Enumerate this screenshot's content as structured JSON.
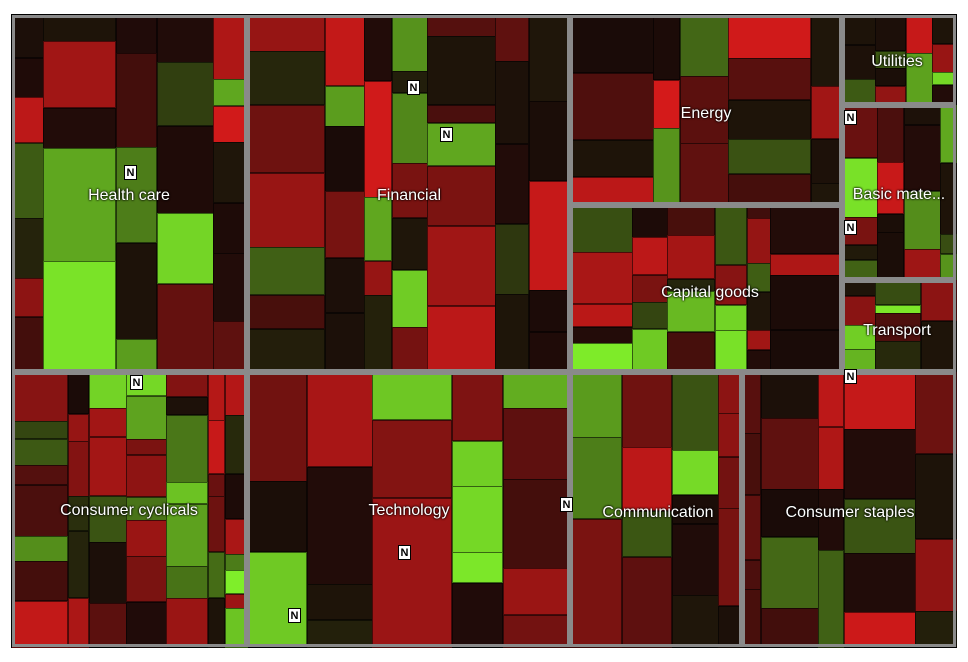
{
  "chart_data": {
    "type": "heatmap",
    "title": "",
    "color_scale": {
      "strong_negative": "#d41a1a",
      "neutral": "#1a0b08",
      "strong_positive": "#80f02a"
    },
    "news_marker": "N",
    "sectors": [
      {
        "name": "Health care",
        "stocks": 30
      },
      {
        "name": "Financial",
        "stocks": 42
      },
      {
        "name": "Energy",
        "stocks": 22
      },
      {
        "name": "Utilities",
        "stocks": 14
      },
      {
        "name": "Basic mate...",
        "stocks": 18
      },
      {
        "name": "Capital goods",
        "stocks": 30
      },
      {
        "name": "Transport",
        "stocks": 8
      },
      {
        "name": "Consumer cyclicals",
        "stocks": 45
      },
      {
        "name": "Technology",
        "stocks": 20
      },
      {
        "name": "Communication",
        "stocks": 14
      },
      {
        "name": "Consumer staples",
        "stocks": 24
      }
    ]
  }
}
